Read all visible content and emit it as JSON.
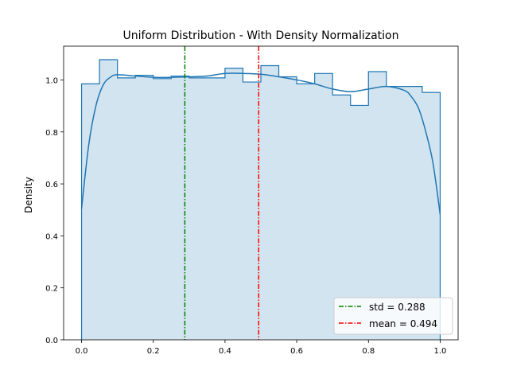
{
  "chart_data": {
    "type": "histogram",
    "title": "Uniform Distribution - With Density Normalization",
    "xlabel": "",
    "ylabel": "Density",
    "xlim": [
      -0.05,
      1.05
    ],
    "ylim": [
      0,
      1.13
    ],
    "xticks": [
      0.0,
      0.2,
      0.4,
      0.6,
      0.8,
      1.0
    ],
    "xtick_labels": [
      "0.0",
      "0.2",
      "0.4",
      "0.6",
      "0.8",
      "1.0"
    ],
    "yticks": [
      0.0,
      0.2,
      0.4,
      0.6,
      0.8,
      1.0
    ],
    "ytick_labels": [
      "0.0",
      "0.2",
      "0.4",
      "0.6",
      "0.8",
      "1.0"
    ],
    "bin_edges": [
      0.0,
      0.05,
      0.1,
      0.15,
      0.2,
      0.25,
      0.3,
      0.35,
      0.4,
      0.45,
      0.5,
      0.55,
      0.6,
      0.65,
      0.7,
      0.75,
      0.8,
      0.85,
      0.9,
      0.95,
      1.0
    ],
    "densities": [
      0.985,
      1.078,
      1.008,
      1.018,
      1.005,
      1.015,
      1.008,
      1.008,
      1.045,
      0.992,
      1.055,
      1.012,
      0.985,
      1.025,
      0.942,
      0.902,
      1.032,
      0.975,
      0.975,
      0.952
    ],
    "kde": {
      "x": [
        0.0,
        0.02,
        0.04,
        0.06,
        0.08,
        0.1,
        0.15,
        0.2,
        0.25,
        0.3,
        0.35,
        0.4,
        0.45,
        0.5,
        0.55,
        0.6,
        0.65,
        0.7,
        0.75,
        0.8,
        0.85,
        0.9,
        0.92,
        0.94,
        0.96,
        0.98,
        1.0
      ],
      "y": [
        0.505,
        0.75,
        0.9,
        0.98,
        1.01,
        1.02,
        1.015,
        1.01,
        1.01,
        1.012,
        1.015,
        1.025,
        1.025,
        1.022,
        1.012,
        1.0,
        0.985,
        0.965,
        0.955,
        0.965,
        0.975,
        0.96,
        0.935,
        0.89,
        0.8,
        0.68,
        0.482
      ]
    },
    "vlines": [
      {
        "label": "std = 0.288",
        "x": 0.288,
        "color": "#008000"
      },
      {
        "label": "mean = 0.494",
        "x": 0.494,
        "color": "#ff0000"
      }
    ],
    "legend_position": "lower-right",
    "hist_fill_color": "#1f77b4",
    "kde_color": "#1f77b4"
  }
}
